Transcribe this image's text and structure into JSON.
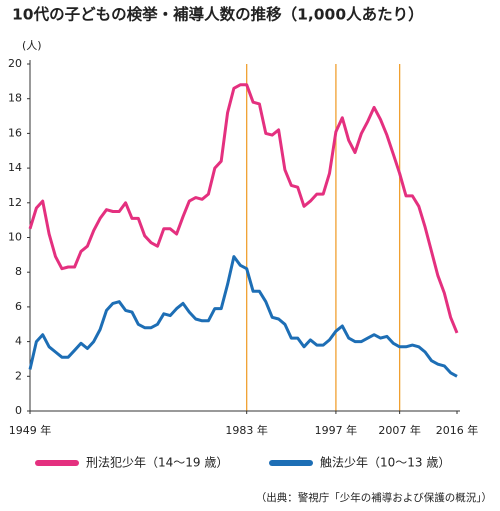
{
  "chart_data": {
    "type": "line",
    "title": "10代の子どもの検挙・補導人数の推移（1,000人あたり）",
    "y_unit": "(人)",
    "source": "（出典：警視庁「少年の補導および保護の概況」）",
    "x": [
      1949,
      1950,
      1951,
      1952,
      1953,
      1954,
      1955,
      1956,
      1957,
      1958,
      1959,
      1960,
      1961,
      1962,
      1963,
      1964,
      1965,
      1966,
      1967,
      1968,
      1969,
      1970,
      1971,
      1972,
      1973,
      1974,
      1975,
      1976,
      1977,
      1978,
      1979,
      1980,
      1981,
      1982,
      1983,
      1984,
      1985,
      1986,
      1987,
      1988,
      1989,
      1990,
      1991,
      1992,
      1993,
      1994,
      1995,
      1996,
      1997,
      1998,
      1999,
      2000,
      2001,
      2002,
      2003,
      2004,
      2005,
      2006,
      2007,
      2008,
      2009,
      2010,
      2011,
      2012,
      2013,
      2014,
      2015,
      2016
    ],
    "series": [
      {
        "name": "刑法犯少年（14〜19 歳）",
        "color": "#e4307f",
        "values": [
          10.5,
          11.7,
          12.1,
          10.2,
          8.9,
          8.2,
          8.3,
          8.3,
          9.2,
          9.5,
          10.4,
          11.1,
          11.6,
          11.5,
          11.5,
          12.0,
          11.1,
          11.1,
          10.1,
          9.7,
          9.5,
          10.5,
          10.5,
          10.2,
          11.2,
          12.1,
          12.3,
          12.2,
          12.5,
          14.0,
          14.4,
          17.2,
          18.6,
          18.8,
          18.8,
          17.8,
          17.7,
          16.0,
          15.9,
          16.2,
          13.9,
          13.0,
          12.9,
          11.8,
          12.1,
          12.5,
          12.5,
          13.7,
          16.1,
          16.9,
          15.6,
          14.9,
          16.0,
          16.7,
          17.5,
          16.8,
          15.9,
          14.8,
          13.7,
          12.4,
          12.4,
          11.8,
          10.6,
          9.2,
          7.8,
          6.8,
          5.4,
          4.5
        ]
      },
      {
        "name": "触法少年（10〜13 歳）",
        "color": "#1d6eb5",
        "values": [
          2.4,
          4.0,
          4.4,
          3.7,
          3.4,
          3.1,
          3.1,
          3.5,
          3.9,
          3.6,
          4.0,
          4.7,
          5.8,
          6.2,
          6.3,
          5.8,
          5.7,
          5.0,
          4.8,
          4.8,
          5.0,
          5.6,
          5.5,
          5.9,
          6.2,
          5.7,
          5.3,
          5.2,
          5.2,
          5.9,
          5.9,
          7.3,
          8.9,
          8.4,
          8.2,
          6.9,
          6.9,
          6.3,
          5.4,
          5.3,
          5.0,
          4.2,
          4.2,
          3.7,
          4.1,
          3.8,
          3.8,
          4.1,
          4.6,
          4.9,
          4.2,
          4.0,
          4.0,
          4.2,
          4.4,
          4.2,
          4.3,
          3.9,
          3.7,
          3.7,
          3.8,
          3.7,
          3.4,
          2.9,
          2.7,
          2.6,
          2.2,
          2.0
        ]
      }
    ],
    "xlim": [
      1949,
      2016
    ],
    "xticks": [
      {
        "value": 1949,
        "label": "1949 年"
      },
      {
        "value": 1983,
        "label": "1983 年"
      },
      {
        "value": 1997,
        "label": "1997 年"
      },
      {
        "value": 2007,
        "label": "2007 年"
      },
      {
        "value": 2016,
        "label": "2016 年"
      }
    ],
    "ylim": [
      0,
      20
    ],
    "yticks": [
      0,
      2,
      4,
      6,
      8,
      10,
      12,
      14,
      16,
      18,
      20
    ],
    "reference_lines": [
      1983,
      1997,
      2007
    ],
    "reference_color": "#f0a030",
    "grid": false,
    "legend": "bottom"
  }
}
